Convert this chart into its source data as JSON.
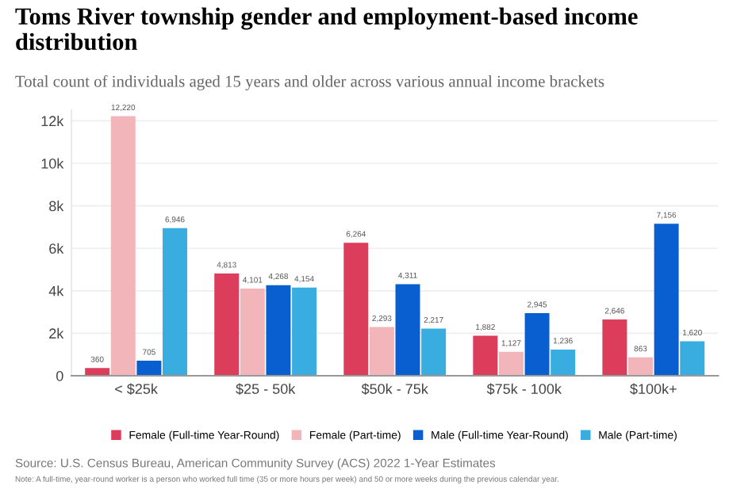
{
  "chart_data": {
    "type": "bar",
    "title": "Toms River township gender and employment-based income distribution",
    "subtitle": "Total count of individuals aged 15 years and older across various annual income brackets",
    "categories": [
      "< $25k",
      "$25 - 50k",
      "$50k - 75k",
      "$75k - 100k",
      "$100k+"
    ],
    "series": [
      {
        "name": "Female (Full-time Year-Round)",
        "color": "#dc3d5a",
        "values": [
          360,
          4813,
          6264,
          1882,
          2646
        ],
        "value_labels": [
          "360",
          "4,813",
          "6,264",
          "1,882",
          "2,646"
        ]
      },
      {
        "name": "Female (Part-time)",
        "color": "#f2b5ba",
        "values": [
          12220,
          4101,
          2293,
          1127,
          863
        ],
        "value_labels": [
          "12,220",
          "4,101",
          "2,293",
          "1,127",
          "863"
        ]
      },
      {
        "name": "Male (Full-time Year-Round)",
        "color": "#0a5fd0",
        "values": [
          705,
          4268,
          4311,
          2945,
          7156
        ],
        "value_labels": [
          "705",
          "4,268",
          "4,311",
          "2,945",
          "7,156"
        ]
      },
      {
        "name": "Male (Part-time)",
        "color": "#3aade0",
        "values": [
          6946,
          4154,
          2217,
          1236,
          1620
        ],
        "value_labels": [
          "6,946",
          "4,154",
          "2,217",
          "1,236",
          "1,620"
        ]
      }
    ],
    "ylim": [
      0,
      12500
    ],
    "yticks": [
      0,
      {
        "value": 2000,
        "label": "2k"
      },
      {
        "value": 4000,
        "label": "4k"
      },
      {
        "value": 6000,
        "label": "6k"
      },
      {
        "value": 8000,
        "label": "8k"
      },
      {
        "value": 10000,
        "label": "10k"
      },
      {
        "value": 12000,
        "label": "12k"
      }
    ],
    "grid": "y",
    "legend": "bottom",
    "annotations": [
      "Source: U.S. Census Bureau, American Community Survey (ACS) 2022 1-Year Estimates",
      "Note: A full-time, year-round worker is a person who worked full time (35 or more hours per week) and 50 or more weeks during the previous calendar year."
    ]
  }
}
